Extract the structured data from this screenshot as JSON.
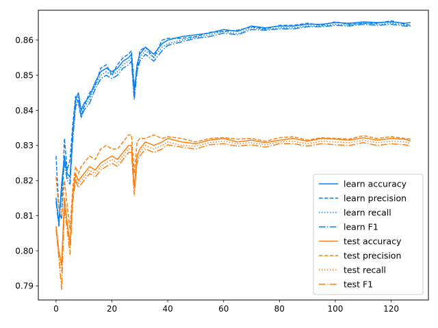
{
  "chart_data": {
    "type": "line",
    "title": "",
    "xlabel": "",
    "ylabel": "",
    "xlim": [
      -6.35,
      133.35
    ],
    "ylim": [
      0.786,
      0.8685
    ],
    "xticks": [
      0,
      20,
      40,
      60,
      80,
      100,
      120
    ],
    "yticks": [
      0.79,
      0.8,
      0.81,
      0.82,
      0.83,
      0.84,
      0.85,
      0.86
    ],
    "ytick_labels": [
      "0.79",
      "0.80",
      "0.81",
      "0.82",
      "0.83",
      "0.84",
      "0.85",
      "0.86"
    ],
    "grid": false,
    "legend_position": "lower-right",
    "colors": {
      "learn": "#0a7fef",
      "test": "#ff7f0e"
    },
    "x_points": [
      0,
      1,
      2,
      3,
      4,
      5,
      6,
      7,
      8,
      9,
      10,
      12,
      14,
      16,
      18,
      20,
      22,
      24,
      26,
      27,
      28,
      29,
      30,
      32,
      35,
      38,
      40,
      45,
      50,
      55,
      60,
      65,
      70,
      75,
      80,
      85,
      90,
      95,
      100,
      105,
      110,
      115,
      120,
      125,
      127
    ],
    "series": [
      {
        "name": "learn accuracy",
        "group": "learn",
        "dash": "solid",
        "values": [
          0.815,
          0.808,
          0.819,
          0.827,
          0.822,
          0.821,
          0.834,
          0.843,
          0.845,
          0.84,
          0.842,
          0.844,
          0.848,
          0.851,
          0.852,
          0.851,
          0.852,
          0.854,
          0.855,
          0.856,
          0.845,
          0.853,
          0.856,
          0.858,
          0.856,
          0.859,
          0.86,
          0.861,
          0.8615,
          0.862,
          0.863,
          0.8625,
          0.864,
          0.8635,
          0.864,
          0.864,
          0.8645,
          0.8645,
          0.865,
          0.8648,
          0.8652,
          0.865,
          0.8652,
          0.8648,
          0.865
        ]
      },
      {
        "name": "learn precision",
        "group": "learn",
        "dash": "dashed",
        "values": [
          0.827,
          0.812,
          0.809,
          0.832,
          0.823,
          0.826,
          0.836,
          0.844,
          0.842,
          0.838,
          0.841,
          0.845,
          0.847,
          0.852,
          0.853,
          0.85,
          0.853,
          0.855,
          0.856,
          0.857,
          0.847,
          0.851,
          0.857,
          0.858,
          0.855,
          0.86,
          0.8605,
          0.8605,
          0.861,
          0.8622,
          0.8625,
          0.8628,
          0.8638,
          0.8632,
          0.8642,
          0.8642,
          0.8648,
          0.8642,
          0.8652,
          0.8645,
          0.8648,
          0.8648,
          0.8655,
          0.8645,
          0.8642
        ]
      },
      {
        "name": "learn recall",
        "group": "learn",
        "dash": "dotted",
        "values": [
          0.815,
          0.808,
          0.818,
          0.826,
          0.821,
          0.82,
          0.833,
          0.842,
          0.844,
          0.839,
          0.841,
          0.843,
          0.847,
          0.85,
          0.851,
          0.85,
          0.851,
          0.853,
          0.854,
          0.855,
          0.844,
          0.852,
          0.855,
          0.857,
          0.855,
          0.858,
          0.859,
          0.86,
          0.8608,
          0.8615,
          0.8625,
          0.8618,
          0.8635,
          0.863,
          0.8635,
          0.8635,
          0.864,
          0.864,
          0.8645,
          0.8643,
          0.8648,
          0.8645,
          0.8648,
          0.8643,
          0.8642
        ]
      },
      {
        "name": "learn F1",
        "group": "learn",
        "dash": "dashdot",
        "values": [
          0.814,
          0.807,
          0.817,
          0.825,
          0.82,
          0.819,
          0.832,
          0.841,
          0.843,
          0.838,
          0.84,
          0.842,
          0.846,
          0.849,
          0.85,
          0.849,
          0.85,
          0.852,
          0.853,
          0.854,
          0.843,
          0.851,
          0.854,
          0.856,
          0.854,
          0.857,
          0.8585,
          0.8595,
          0.8605,
          0.861,
          0.862,
          0.8615,
          0.863,
          0.8628,
          0.8632,
          0.8632,
          0.8638,
          0.8638,
          0.8642,
          0.864,
          0.8645,
          0.8642,
          0.8645,
          0.864,
          0.864
        ]
      },
      {
        "name": "test accuracy",
        "group": "test",
        "dash": "solid",
        "values": [
          0.807,
          0.8,
          0.796,
          0.815,
          0.808,
          0.802,
          0.816,
          0.822,
          0.82,
          0.821,
          0.822,
          0.824,
          0.823,
          0.825,
          0.826,
          0.827,
          0.826,
          0.828,
          0.83,
          0.83,
          0.818,
          0.827,
          0.829,
          0.831,
          0.83,
          0.831,
          0.832,
          0.831,
          0.8305,
          0.8315,
          0.832,
          0.831,
          0.8315,
          0.8308,
          0.8315,
          0.832,
          0.8312,
          0.832,
          0.8318,
          0.8315,
          0.8322,
          0.8315,
          0.832,
          0.8318,
          0.8312
        ]
      },
      {
        "name": "test precision",
        "group": "test",
        "dash": "dashed",
        "values": [
          0.821,
          0.812,
          0.81,
          0.82,
          0.813,
          0.806,
          0.818,
          0.824,
          0.822,
          0.824,
          0.825,
          0.827,
          0.826,
          0.829,
          0.83,
          0.829,
          0.829,
          0.831,
          0.833,
          0.833,
          0.822,
          0.831,
          0.832,
          0.832,
          0.833,
          0.832,
          0.8325,
          0.832,
          0.831,
          0.832,
          0.8322,
          0.8318,
          0.832,
          0.8312,
          0.8322,
          0.8325,
          0.8315,
          0.8322,
          0.832,
          0.8318,
          0.8328,
          0.832,
          0.8325,
          0.832,
          0.8318
        ]
      },
      {
        "name": "test recall",
        "group": "test",
        "dash": "dotted",
        "values": [
          0.807,
          0.799,
          0.794,
          0.814,
          0.807,
          0.801,
          0.815,
          0.821,
          0.819,
          0.82,
          0.821,
          0.823,
          0.822,
          0.824,
          0.825,
          0.826,
          0.825,
          0.827,
          0.829,
          0.829,
          0.817,
          0.826,
          0.828,
          0.83,
          0.829,
          0.83,
          0.831,
          0.83,
          0.8298,
          0.8308,
          0.8312,
          0.8305,
          0.8308,
          0.8302,
          0.831,
          0.8312,
          0.8305,
          0.8312,
          0.831,
          0.8308,
          0.8315,
          0.8308,
          0.8312,
          0.831,
          0.8305
        ]
      },
      {
        "name": "test F1",
        "group": "test",
        "dash": "dashdot",
        "values": [
          0.806,
          0.798,
          0.789,
          0.812,
          0.806,
          0.799,
          0.814,
          0.82,
          0.818,
          0.819,
          0.82,
          0.822,
          0.821,
          0.823,
          0.824,
          0.825,
          0.824,
          0.826,
          0.828,
          0.828,
          0.816,
          0.825,
          0.827,
          0.829,
          0.828,
          0.829,
          0.8302,
          0.8295,
          0.829,
          0.8302,
          0.8305,
          0.8298,
          0.8302,
          0.8295,
          0.8305,
          0.8305,
          0.8298,
          0.8305,
          0.8302,
          0.83,
          0.8308,
          0.83,
          0.8305,
          0.8302,
          0.8298
        ]
      }
    ]
  }
}
